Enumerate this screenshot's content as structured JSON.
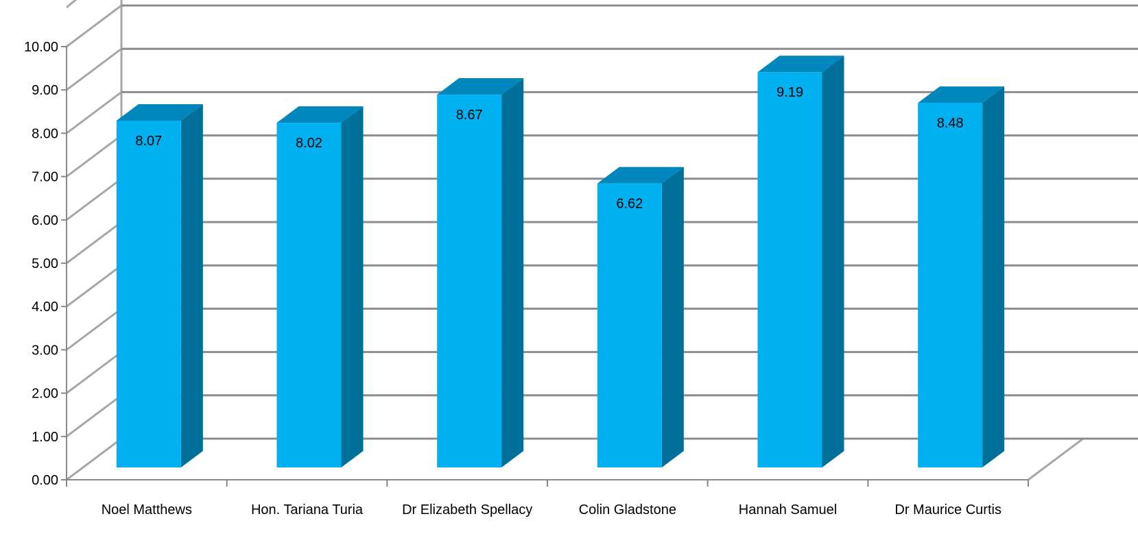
{
  "chart_data": {
    "type": "bar",
    "style": "3d-column",
    "title": "",
    "xlabel": "",
    "ylabel": "",
    "categories": [
      "Noel Matthews",
      "Hon. Tariana Turia",
      "Dr Elizabeth Spellacy",
      "Colin Gladstone",
      "Hannah Samuel",
      "Dr Maurice Curtis"
    ],
    "series": [
      {
        "values": [
          8.07,
          8.02,
          8.67,
          6.62,
          9.19,
          8.48
        ]
      }
    ],
    "data_labels": [
      "8.07",
      "8.02",
      "8.67",
      "6.62",
      "9.19",
      "8.48"
    ],
    "ylim": [
      0,
      10
    ],
    "yticks": [
      "0.00",
      "1.00",
      "2.00",
      "3.00",
      "4.00",
      "5.00",
      "6.00",
      "7.00",
      "8.00",
      "9.00",
      "10.00"
    ],
    "grid": true,
    "legend": "none",
    "colors": {
      "bar_front": "#00b0f0",
      "bar_side": "#006f99",
      "bar_top": "#0088bd",
      "gridline": "#8c8c8c",
      "wall_line": "#a6a6a6",
      "axis": "#888888"
    }
  }
}
